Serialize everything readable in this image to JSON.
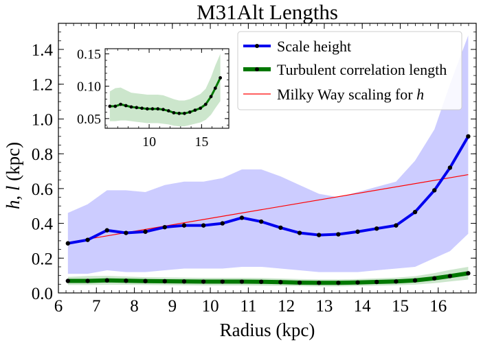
{
  "chart_data": {
    "type": "line",
    "title": "M31Alt Lengths",
    "xlabel": "Radius (kpc)",
    "ylabel": "h, l (kpc)",
    "xlim": [
      6.0,
      17.0
    ],
    "ylim": [
      0.0,
      1.55
    ],
    "xticks": [
      6,
      7,
      8,
      9,
      10,
      11,
      12,
      13,
      14,
      15,
      16
    ],
    "yticks": [
      0.0,
      0.2,
      0.4,
      0.6,
      0.8,
      1.0,
      1.2,
      1.4
    ],
    "legend_position": "top-right",
    "x": [
      6.25,
      6.77,
      7.28,
      7.78,
      8.29,
      8.8,
      9.31,
      9.82,
      10.32,
      10.83,
      11.34,
      11.85,
      12.35,
      12.86,
      13.37,
      13.88,
      14.38,
      14.89,
      15.39,
      15.9,
      16.31,
      16.79
    ],
    "series": [
      {
        "name": "Scale height",
        "color": "#0000ee",
        "values": [
          0.285,
          0.305,
          0.36,
          0.345,
          0.352,
          0.378,
          0.388,
          0.388,
          0.4,
          0.432,
          0.41,
          0.375,
          0.345,
          0.333,
          0.337,
          0.352,
          0.37,
          0.388,
          0.465,
          0.59,
          0.72,
          0.9
        ],
        "band_upper": [
          0.46,
          0.51,
          0.59,
          0.59,
          0.58,
          0.62,
          0.64,
          0.64,
          0.66,
          0.71,
          0.71,
          0.67,
          0.62,
          0.57,
          0.55,
          0.58,
          0.61,
          0.64,
          0.76,
          0.94,
          1.2,
          1.48
        ],
        "band_lower": [
          0.11,
          0.11,
          0.13,
          0.12,
          0.12,
          0.13,
          0.14,
          0.14,
          0.14,
          0.15,
          0.15,
          0.14,
          0.13,
          0.12,
          0.12,
          0.12,
          0.13,
          0.14,
          0.15,
          0.2,
          0.24,
          0.34
        ]
      },
      {
        "name": "Turbulent correlation length",
        "color": "#007700",
        "values": [
          0.069,
          0.069,
          0.072,
          0.07,
          0.068,
          0.067,
          0.066,
          0.065,
          0.065,
          0.065,
          0.064,
          0.062,
          0.059,
          0.058,
          0.058,
          0.06,
          0.063,
          0.066,
          0.072,
          0.084,
          0.097,
          0.113
        ],
        "band_upper": [
          0.092,
          0.097,
          0.098,
          0.094,
          0.09,
          0.089,
          0.088,
          0.087,
          0.087,
          0.087,
          0.086,
          0.083,
          0.08,
          0.078,
          0.078,
          0.08,
          0.084,
          0.088,
          0.096,
          0.114,
          0.132,
          0.15
        ],
        "band_lower": [
          0.046,
          0.046,
          0.047,
          0.047,
          0.046,
          0.045,
          0.044,
          0.043,
          0.043,
          0.043,
          0.042,
          0.041,
          0.039,
          0.038,
          0.038,
          0.04,
          0.042,
          0.044,
          0.048,
          0.056,
          0.066,
          0.077
        ]
      },
      {
        "name": "Milky Way scaling for h",
        "color": "#ff0000",
        "x_range": [
          6.25,
          16.79
        ],
        "values_endpoints": [
          0.29,
          0.68
        ]
      }
    ],
    "inset": {
      "xlim": [
        5.8,
        17.6
      ],
      "ylim": [
        0.035,
        0.158
      ],
      "xticks": [
        10,
        15
      ],
      "yticks": [
        0.05,
        0.1,
        0.15
      ]
    }
  },
  "legend": {
    "items": [
      {
        "label": "Scale height"
      },
      {
        "label": "Turbulent correlation length"
      },
      {
        "label": "Milky Way scaling for "
      }
    ],
    "h_italic": "h"
  },
  "labels": {
    "ylabel_h": "h",
    "ylabel_sep": ", ",
    "ylabel_l": "l",
    "ylabel_unit": " (kpc)"
  }
}
